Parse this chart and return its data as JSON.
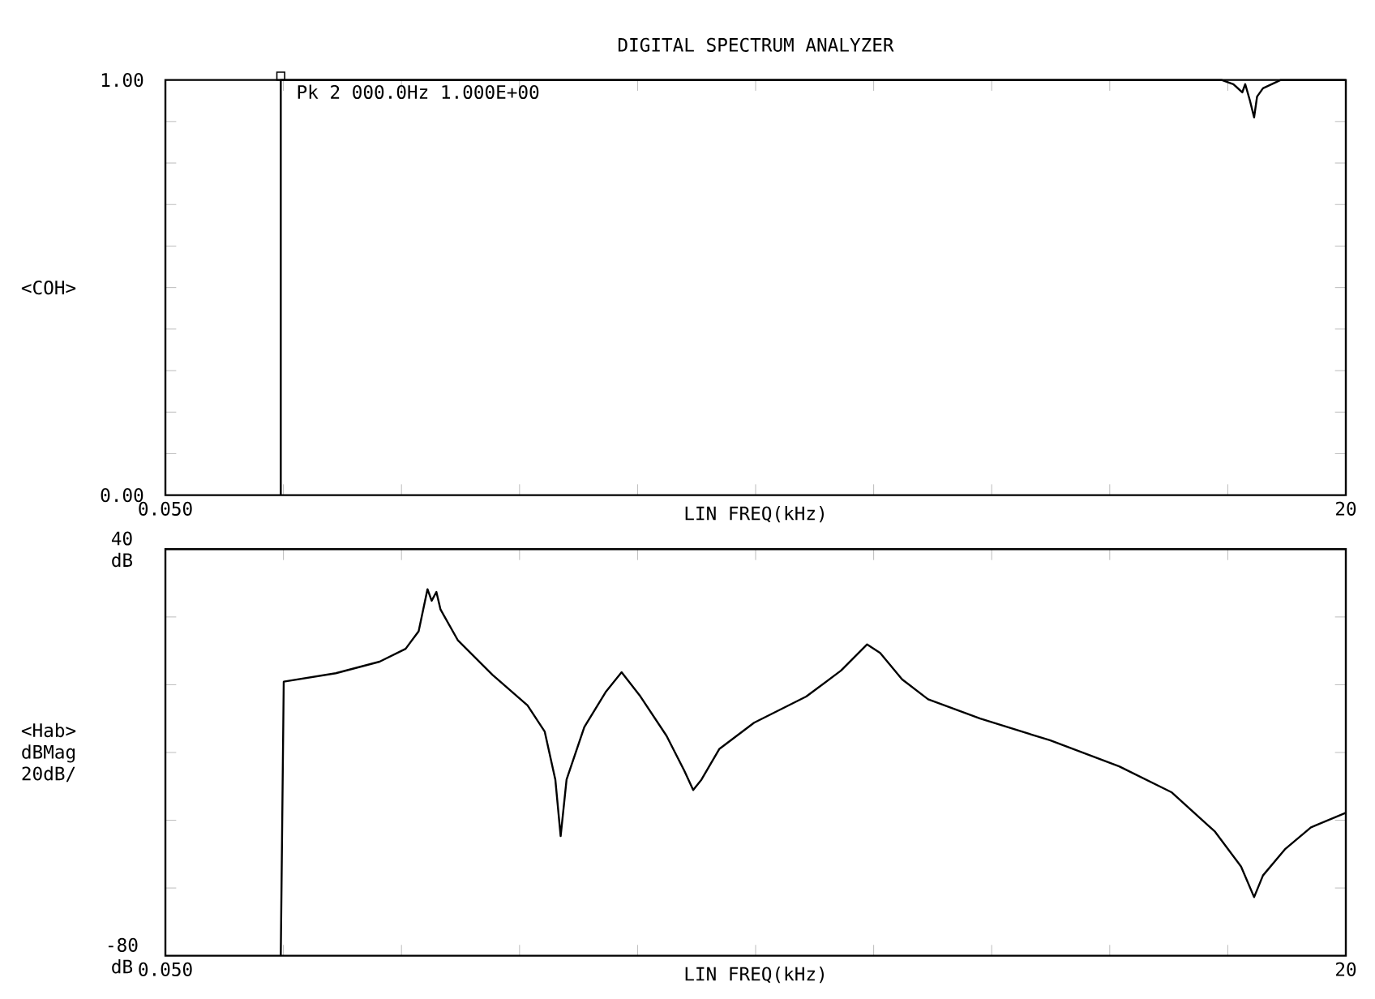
{
  "chart_data": [
    {
      "type": "line",
      "title": "DIGITAL SPECTRUM ANALYZER",
      "xlabel": "LIN FREQ(kHz)",
      "ylabel": "<COH>",
      "color": "#000000",
      "x": [
        2.0,
        2.0,
        17.9,
        18.1,
        18.25,
        18.3,
        18.38,
        18.45,
        18.5,
        18.6,
        18.75,
        18.9,
        20.0
      ],
      "values": [
        0.0,
        1.0,
        1.0,
        0.99,
        0.97,
        0.99,
        0.95,
        0.91,
        0.96,
        0.98,
        0.99,
        1.0,
        1.0
      ],
      "xlim": [
        0.05,
        20
      ],
      "xticks": [
        {
          "value": 0.05,
          "label": "0.050"
        },
        {
          "value": 2.045,
          "label": null
        },
        {
          "value": 4.04,
          "label": null
        },
        {
          "value": 6.035,
          "label": null
        },
        {
          "value": 8.03,
          "label": null
        },
        {
          "value": 10.025,
          "label": null
        },
        {
          "value": 12.02,
          "label": null
        },
        {
          "value": 14.015,
          "label": null
        },
        {
          "value": 16.01,
          "label": null
        },
        {
          "value": 18.005,
          "label": null
        },
        20
      ],
      "ylim": [
        0,
        1
      ],
      "yticks": [
        {
          "value": 0,
          "label": "0.00"
        },
        {
          "value": 0.1,
          "label": null
        },
        {
          "value": 0.2,
          "label": null
        },
        {
          "value": 0.3,
          "label": null
        },
        {
          "value": 0.4,
          "label": null
        },
        {
          "value": 0.5,
          "label": null
        },
        {
          "value": 0.6,
          "label": null
        },
        {
          "value": 0.7,
          "label": null
        },
        {
          "value": 0.8,
          "label": null
        },
        {
          "value": 0.9,
          "label": null
        },
        {
          "value": 1,
          "label": "1.00"
        }
      ],
      "annotations": [
        {
          "text": "Pk 2 000.0Hz 1.000E+00",
          "x": 2.0,
          "y": 1.0
        }
      ]
    },
    {
      "type": "line",
      "xlabel": "LIN FREQ(kHz)",
      "ylabel": "<Hab> dBMag 20dB/",
      "color": "#000000",
      "x": [
        2.0,
        2.05,
        2.93,
        3.67,
        4.11,
        4.33,
        4.48,
        4.55,
        4.63,
        4.7,
        4.99,
        5.58,
        6.17,
        6.46,
        6.64,
        6.73,
        6.83,
        7.13,
        7.49,
        7.76,
        8.08,
        8.52,
        8.82,
        8.97,
        9.11,
        9.41,
        10.0,
        10.88,
        11.47,
        11.91,
        12.13,
        12.5,
        12.94,
        13.82,
        15.0,
        16.17,
        17.06,
        17.79,
        18.23,
        18.45,
        18.6,
        18.97,
        19.41,
        20.0
      ],
      "values": [
        -80,
        0.9,
        3.4,
        6.8,
        10.6,
        15.8,
        28.2,
        24.8,
        27.4,
        22.2,
        13.2,
        2.9,
        -6.1,
        -13.8,
        -28.0,
        -44.7,
        -28.0,
        -12.5,
        -2.2,
        3.7,
        -3.5,
        -15.1,
        -25.4,
        -31.1,
        -28.0,
        -19.0,
        -11.2,
        -3.5,
        4.2,
        11.9,
        9.4,
        1.6,
        -4.3,
        -10.0,
        -16.4,
        -24.1,
        -31.8,
        -43.4,
        -53.7,
        -62.7,
        -56.3,
        -48.6,
        -42.1,
        -37.8
      ],
      "xlim": [
        0.05,
        20
      ],
      "xticks": [
        {
          "value": 0.05,
          "label": "0.050"
        },
        {
          "value": 2.045,
          "label": null
        },
        {
          "value": 4.04,
          "label": null
        },
        {
          "value": 6.035,
          "label": null
        },
        {
          "value": 8.03,
          "label": null
        },
        {
          "value": 10.025,
          "label": null
        },
        {
          "value": 12.02,
          "label": null
        },
        {
          "value": 14.015,
          "label": null
        },
        {
          "value": 16.01,
          "label": null
        },
        {
          "value": 18.005,
          "label": null
        },
        20
      ],
      "ylim": [
        -80,
        40
      ],
      "yticks": [
        {
          "value": -80,
          "label": "-80 dB"
        },
        {
          "value": -60,
          "label": null
        },
        {
          "value": -40,
          "label": null
        },
        {
          "value": -20,
          "label": null
        },
        {
          "value": 0,
          "label": null
        },
        {
          "value": 20,
          "label": null
        },
        {
          "value": 40,
          "label": "40 dB"
        }
      ]
    }
  ]
}
